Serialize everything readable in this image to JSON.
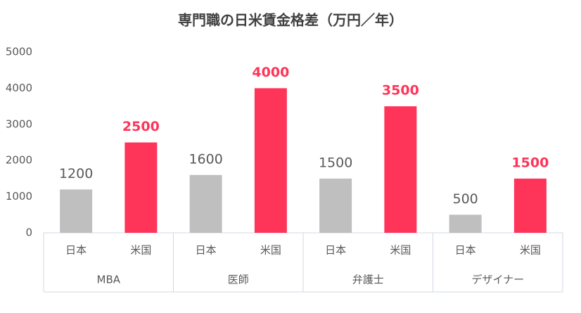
{
  "chart_data": {
    "type": "bar",
    "title": "専門職の日米賃金格差（万円／年）",
    "categories": [
      "日本",
      "米国",
      "日本",
      "米国",
      "日本",
      "米国",
      "日本",
      "米国"
    ],
    "groups": [
      "MBA",
      "医師",
      "弁護士",
      "デザイナー"
    ],
    "values": [
      1200,
      2500,
      1600,
      4000,
      1500,
      3500,
      500,
      1500
    ],
    "colors": [
      "#bfbfbf",
      "#ff3459",
      "#bfbfbf",
      "#ff3459",
      "#bfbfbf",
      "#ff3459",
      "#bfbfbf",
      "#ff3459"
    ],
    "label_colors": [
      "#595959",
      "#ff3459",
      "#595959",
      "#ff3459",
      "#595959",
      "#ff3459",
      "#595959",
      "#ff3459"
    ],
    "ylim": [
      0,
      5000
    ],
    "yticks": [
      0,
      1000,
      2000,
      3000,
      4000,
      5000
    ],
    "grid": false
  }
}
